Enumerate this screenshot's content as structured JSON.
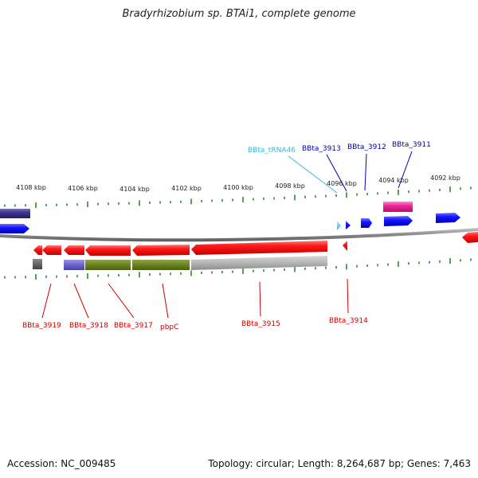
{
  "title": "Bradyrhizobium sp. BTAi1, complete genome",
  "ticks": [
    "4108 kbp",
    "4106 kbp",
    "4104 kbp",
    "4102 kbp",
    "4100 kbp",
    "4098 kbp",
    "4096 kbp",
    "4094 kbp",
    "4092 kbp"
  ],
  "genes_top": [
    {
      "label": "BBta_tRNA46",
      "color": "#33bbdd"
    },
    {
      "label": "BBta_3913",
      "color": "#0000aa"
    },
    {
      "label": "BBta_3912",
      "color": "#0000aa"
    },
    {
      "label": "BBta_3911",
      "color": "#0000aa"
    }
  ],
  "genes_bottom": [
    {
      "label": "BBta_3919",
      "color": "#cc0000"
    },
    {
      "label": "BBta_3918",
      "color": "#cc0000"
    },
    {
      "label": "BBta_3917",
      "color": "#cc0000"
    },
    {
      "label": "pbpC",
      "color": "#cc0000"
    },
    {
      "label": "BBta_3915",
      "color": "#cc0000"
    },
    {
      "label": "BBta_3914",
      "color": "#cc0000"
    }
  ],
  "footer": {
    "accession": "Accession: NC_009485",
    "stats": "Topology: circular; Length: 8,264,687 bp; Genes: 7,463"
  }
}
